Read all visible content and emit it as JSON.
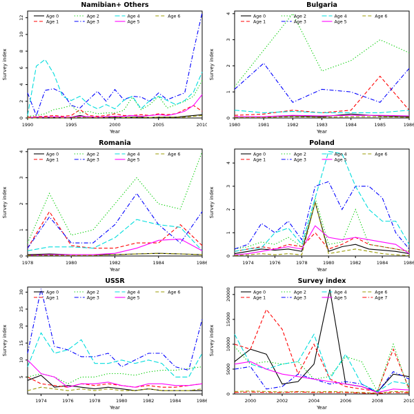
{
  "page": {
    "background": "#ffffff"
  },
  "chart_data": [
    {
      "type": "line",
      "title": "Namibian+ Others",
      "xlabel": "Year",
      "ylabel": "Survey index",
      "xlim": [
        1990,
        2010
      ],
      "ylim": [
        0,
        12.8
      ],
      "xticks": [
        1990,
        1995,
        2000,
        2005,
        2010
      ],
      "yticks": [
        0,
        2,
        4,
        6,
        8,
        10,
        12
      ],
      "grid": false,
      "legend_position": "top-inside",
      "x": [
        1990,
        1991,
        1992,
        1993,
        1994,
        1995,
        1996,
        1997,
        1998,
        1999,
        2000,
        2001,
        2002,
        2003,
        2004,
        2005,
        2006,
        2007,
        2008,
        2009,
        2010
      ],
      "series": [
        {
          "name": "Age 0",
          "color": "#000000",
          "dash": "solid",
          "values": [
            0.05,
            0.05,
            0.1,
            0.05,
            0.05,
            0.1,
            0.3,
            0.1,
            0.05,
            0.1,
            0.1,
            0.05,
            0.1,
            0.1,
            0.05,
            0.1,
            0.1,
            0.1,
            0.2,
            0.3,
            0.4
          ]
        },
        {
          "name": "Age 1",
          "color": "#FF0000",
          "dash": "dashed",
          "values": [
            0.1,
            0.15,
            0.2,
            0.3,
            0.2,
            0.3,
            1.0,
            0.3,
            0.2,
            0.3,
            0.5,
            0.3,
            0.3,
            0.4,
            0.3,
            0.5,
            0.4,
            0.5,
            1.0,
            1.5,
            0.8
          ]
        },
        {
          "name": "Age 2",
          "color": "#00CD00",
          "dash": "dotted",
          "values": [
            0.2,
            0.3,
            0.5,
            1.0,
            1.2,
            1.5,
            0.6,
            0.8,
            0.5,
            0.6,
            0.6,
            0.9,
            2.5,
            1.0,
            1.6,
            2.6,
            1.2,
            1.6,
            2.0,
            2.6,
            4.5
          ]
        },
        {
          "name": "Age 3",
          "color": "#0000FF",
          "dash": "dashdot",
          "values": [
            3.0,
            0.3,
            3.3,
            3.5,
            3.0,
            1.5,
            1.2,
            2.2,
            3.2,
            2.0,
            3.4,
            2.2,
            2.6,
            2.5,
            2.0,
            3.0,
            2.2,
            2.6,
            3.0,
            8.0,
            12.6
          ]
        },
        {
          "name": "Age 4",
          "color": "#00DDDD",
          "dash": "longdash",
          "values": [
            0.3,
            6.2,
            7.0,
            5.3,
            2.6,
            2.1,
            2.6,
            1.6,
            1.1,
            1.6,
            1.1,
            2.1,
            2.6,
            1.1,
            2.1,
            2.6,
            2.1,
            1.6,
            2.1,
            3.1,
            5.5
          ]
        },
        {
          "name": "Age 5",
          "color": "#FF00FF",
          "dash": "solid",
          "values": [
            0.05,
            0.1,
            0.1,
            0.15,
            0.1,
            0.1,
            0.2,
            0.15,
            0.1,
            0.15,
            0.2,
            0.2,
            0.3,
            0.2,
            0.3,
            0.4,
            0.3,
            0.5,
            0.8,
            1.5,
            2.8
          ]
        },
        {
          "name": "Age 6",
          "color": "#999900",
          "dash": "dashed",
          "values": [
            0.02,
            0.02,
            0.05,
            0.05,
            0.02,
            0.05,
            0.1,
            0.05,
            0.05,
            0.05,
            0.1,
            0.05,
            0.05,
            0.1,
            0.05,
            0.1,
            0.1,
            0.1,
            0.1,
            0.2,
            0.3
          ]
        }
      ]
    },
    {
      "type": "line",
      "title": "Bulgaria",
      "xlabel": "Year",
      "ylabel": "Survey index",
      "xlim": [
        1980,
        1986
      ],
      "ylim": [
        0,
        4.1
      ],
      "xticks": [
        1980,
        1981,
        1982,
        1983,
        1984,
        1985,
        1986
      ],
      "yticks": [
        0,
        1,
        2,
        3,
        4
      ],
      "grid": false,
      "legend_position": "top-inside",
      "x": [
        1980,
        1981,
        1982,
        1983,
        1984,
        1985,
        1986
      ],
      "series": [
        {
          "name": "Age 0",
          "color": "#000000",
          "dash": "solid",
          "values": [
            0.05,
            0.05,
            0.08,
            0.05,
            0.15,
            0.08,
            0.05
          ]
        },
        {
          "name": "Age 1",
          "color": "#FF0000",
          "dash": "dashed",
          "values": [
            0.1,
            0.15,
            0.3,
            0.2,
            0.3,
            1.6,
            0.3
          ]
        },
        {
          "name": "Age 2",
          "color": "#00CD00",
          "dash": "dotted",
          "values": [
            1.2,
            2.6,
            4.0,
            1.8,
            2.2,
            3.0,
            2.5
          ]
        },
        {
          "name": "Age 3",
          "color": "#0000FF",
          "dash": "dashdot",
          "values": [
            1.1,
            2.1,
            0.6,
            1.1,
            1.0,
            0.6,
            1.9
          ]
        },
        {
          "name": "Age 4",
          "color": "#00DDDD",
          "dash": "longdash",
          "values": [
            0.3,
            0.2,
            0.25,
            0.2,
            0.2,
            0.2,
            0.3
          ]
        },
        {
          "name": "Age 5",
          "color": "#FF00FF",
          "dash": "solid",
          "values": [
            0.05,
            0.05,
            0.1,
            0.08,
            0.1,
            0.1,
            0.08
          ]
        },
        {
          "name": "Age 6",
          "color": "#999900",
          "dash": "dashed",
          "values": [
            0.02,
            0.02,
            0.05,
            0.03,
            0.05,
            0.05,
            0.03
          ]
        }
      ]
    },
    {
      "type": "line",
      "title": "Romania",
      "xlabel": "Year",
      "ylabel": "Survey index",
      "xlim": [
        1978,
        1986
      ],
      "ylim": [
        0,
        4.1
      ],
      "xticks": [
        1978,
        1980,
        1982,
        1984,
        1986
      ],
      "yticks": [
        0,
        1,
        2,
        3,
        4
      ],
      "grid": false,
      "legend_position": "top-inside",
      "x": [
        1978,
        1979,
        1980,
        1981,
        1982,
        1983,
        1984,
        1985,
        1986
      ],
      "series": [
        {
          "name": "Age 0",
          "color": "#000000",
          "dash": "solid",
          "values": [
            0.05,
            0.08,
            0.05,
            0.05,
            0.05,
            0.08,
            0.1,
            0.08,
            0.05
          ]
        },
        {
          "name": "Age 1",
          "color": "#FF0000",
          "dash": "dashed",
          "values": [
            0.3,
            1.7,
            0.4,
            0.3,
            0.3,
            0.5,
            0.5,
            1.2,
            0.4
          ]
        },
        {
          "name": "Age 2",
          "color": "#00CD00",
          "dash": "dotted",
          "values": [
            0.5,
            2.4,
            0.8,
            1.0,
            2.0,
            3.0,
            2.0,
            1.8,
            4.0
          ]
        },
        {
          "name": "Age 3",
          "color": "#0000FF",
          "dash": "dashdot",
          "values": [
            0.3,
            1.5,
            0.5,
            0.5,
            1.2,
            2.4,
            1.2,
            0.5,
            1.7
          ]
        },
        {
          "name": "Age 4",
          "color": "#00DDDD",
          "dash": "longdash",
          "values": [
            0.2,
            0.35,
            0.35,
            0.3,
            0.7,
            1.4,
            1.2,
            1.1,
            0.2
          ]
        },
        {
          "name": "Age 5",
          "color": "#FF00FF",
          "dash": "solid",
          "values": [
            0.02,
            0.05,
            0.05,
            0.05,
            0.1,
            0.3,
            0.6,
            0.65,
            0.2
          ]
        },
        {
          "name": "Age 6",
          "color": "#999900",
          "dash": "dashed",
          "values": [
            0.02,
            0.03,
            0.02,
            0.02,
            0.05,
            0.08,
            0.1,
            0.08,
            0.05
          ]
        }
      ]
    },
    {
      "type": "line",
      "title": "Poland",
      "xlabel": "Year",
      "ylabel": "Survey index",
      "xlim": [
        1973,
        1986
      ],
      "ylim": [
        0,
        4.6
      ],
      "xticks": [
        1974,
        1976,
        1978,
        1980,
        1982,
        1984,
        1986
      ],
      "yticks": [
        0,
        1,
        2,
        3,
        4
      ],
      "grid": false,
      "legend_position": "top-inside",
      "x": [
        1973,
        1974,
        1975,
        1976,
        1977,
        1978,
        1979,
        1980,
        1981,
        1982,
        1983,
        1984,
        1985,
        1986
      ],
      "series": [
        {
          "name": "Age 0",
          "color": "#000000",
          "dash": "solid",
          "values": [
            0.1,
            0.2,
            0.3,
            0.25,
            0.3,
            0.2,
            2.3,
            0.2,
            0.4,
            0.5,
            0.3,
            0.25,
            0.2,
            0.1
          ]
        },
        {
          "name": "Age 1",
          "color": "#FF0000",
          "dash": "dashed",
          "values": [
            0.2,
            0.3,
            0.4,
            0.3,
            0.5,
            0.4,
            1.0,
            0.3,
            0.5,
            0.8,
            0.5,
            0.4,
            0.3,
            0.2
          ]
        },
        {
          "name": "Age 2",
          "color": "#00CD00",
          "dash": "dotted",
          "values": [
            0.3,
            0.4,
            0.6,
            0.5,
            0.8,
            0.4,
            2.5,
            0.5,
            0.6,
            2.0,
            0.5,
            0.4,
            0.3,
            0.2
          ]
        },
        {
          "name": "Age 3",
          "color": "#0000FF",
          "dash": "dashdot",
          "values": [
            0.3,
            0.5,
            1.4,
            1.0,
            1.5,
            0.7,
            3.0,
            3.2,
            2.0,
            3.0,
            3.0,
            2.5,
            1.0,
            0.3
          ]
        },
        {
          "name": "Age 4",
          "color": "#00DDDD",
          "dash": "longdash",
          "values": [
            0.2,
            0.3,
            0.35,
            1.0,
            1.2,
            0.5,
            2.5,
            4.5,
            4.4,
            3.0,
            2.0,
            1.5,
            1.5,
            0.5
          ]
        },
        {
          "name": "Age 5",
          "color": "#FF00FF",
          "dash": "solid",
          "values": [
            0.05,
            0.1,
            0.2,
            0.3,
            0.4,
            0.3,
            1.3,
            0.8,
            0.7,
            0.8,
            0.7,
            0.6,
            0.5,
            0.1
          ]
        },
        {
          "name": "Age 6",
          "color": "#999900",
          "dash": "dashed",
          "values": [
            0.02,
            0.05,
            0.1,
            0.05,
            0.1,
            0.05,
            2.3,
            0.1,
            0.2,
            0.3,
            0.2,
            0.1,
            0.05,
            0.02
          ]
        }
      ]
    },
    {
      "type": "line",
      "title": "USSR",
      "xlabel": "Year",
      "ylabel": "Survey index",
      "xlim": [
        1973,
        1986
      ],
      "ylim": [
        0,
        31.5
      ],
      "xticks": [
        1974,
        1976,
        1978,
        1980,
        1982,
        1984,
        1986
      ],
      "yticks": [
        5,
        10,
        15,
        20,
        25,
        30
      ],
      "grid": false,
      "legend_position": "top-inside",
      "x": [
        1973,
        1974,
        1975,
        1976,
        1977,
        1978,
        1979,
        1980,
        1981,
        1982,
        1983,
        1984,
        1985,
        1986
      ],
      "series": [
        {
          "name": "Age 0",
          "color": "#000000",
          "dash": "solid",
          "values": [
            4,
            5.5,
            2,
            2.5,
            2,
            1.5,
            2,
            1.5,
            1,
            1.5,
            1,
            1,
            1,
            1
          ]
        },
        {
          "name": "Age 1",
          "color": "#FF0000",
          "dash": "dashed",
          "values": [
            5,
            3,
            2.5,
            2,
            3,
            2.5,
            3,
            2.5,
            2,
            2.5,
            2,
            2,
            2.5,
            3
          ]
        },
        {
          "name": "Age 2",
          "color": "#00CD00",
          "dash": "dotted",
          "values": [
            5,
            6,
            5,
            3,
            5,
            5,
            6,
            6,
            5.5,
            6.5,
            7,
            7,
            7.5,
            8
          ]
        },
        {
          "name": "Age 3",
          "color": "#0000FF",
          "dash": "dashdot",
          "values": [
            12,
            31,
            14,
            13,
            11,
            11,
            12,
            8,
            10,
            12,
            12,
            8,
            7,
            22
          ]
        },
        {
          "name": "Age 4",
          "color": "#00DDDD",
          "dash": "longdash",
          "values": [
            8,
            18,
            12,
            13,
            16,
            9,
            9,
            10,
            9,
            10,
            9,
            5,
            5,
            12
          ]
        },
        {
          "name": "Age 5",
          "color": "#FF00FF",
          "dash": "solid",
          "values": [
            10,
            6,
            5,
            2,
            3,
            3,
            3.5,
            2.5,
            2,
            3,
            3,
            2.5,
            2.5,
            3
          ]
        },
        {
          "name": "Age 6",
          "color": "#999900",
          "dash": "dashed",
          "values": [
            1,
            2,
            1.5,
            1,
            1.5,
            1,
            1.5,
            1,
            1,
            1.5,
            1,
            1,
            1,
            1.5
          ]
        }
      ]
    },
    {
      "type": "line",
      "title": "Survey index",
      "xlabel": "Year",
      "ylabel": "Survey index",
      "xlim": [
        1999,
        2010
      ],
      "ylim": [
        0,
        21500
      ],
      "xticks": [
        2000,
        2002,
        2004,
        2006,
        2008,
        2010
      ],
      "yticks": [
        0,
        5000,
        10000,
        15000,
        20000
      ],
      "grid": false,
      "legend_position": "top-inside",
      "x": [
        1999,
        2000,
        2001,
        2002,
        2003,
        2004,
        2005,
        2006,
        2007,
        2008,
        2009,
        2010
      ],
      "series": [
        {
          "name": "Age 0",
          "color": "#000000",
          "dash": "solid",
          "values": [
            6500,
            9000,
            8000,
            2000,
            2500,
            6000,
            21000,
            2000,
            1500,
            400,
            4000,
            3500
          ]
        },
        {
          "name": "Age 1",
          "color": "#FF0000",
          "dash": "dashed",
          "values": [
            10000,
            9000,
            17000,
            13000,
            4000,
            10000,
            3000,
            1500,
            1000,
            500,
            9000,
            1000
          ]
        },
        {
          "name": "Age 2",
          "color": "#00CD00",
          "dash": "dotted",
          "values": [
            9500,
            6000,
            6500,
            6000,
            6500,
            3000,
            3500,
            7500,
            6500,
            500,
            10000,
            600
          ]
        },
        {
          "name": "Age 3",
          "color": "#0000FF",
          "dash": "dashdot",
          "values": [
            5000,
            5500,
            1000,
            1500,
            4000,
            3000,
            2000,
            2500,
            2000,
            300,
            4500,
            3000
          ]
        },
        {
          "name": "Age 4",
          "color": "#00DDDD",
          "dash": "longdash",
          "values": [
            12000,
            6000,
            5000,
            6000,
            6500,
            12000,
            3000,
            8000,
            2000,
            500,
            2500,
            2000
          ]
        },
        {
          "name": "Age 5",
          "color": "#FF00FF",
          "dash": "solid",
          "values": [
            6000,
            6500,
            5000,
            4000,
            3500,
            3000,
            2500,
            2000,
            1500,
            300,
            1000,
            800
          ]
        },
        {
          "name": "Age 6",
          "color": "#999900",
          "dash": "dashed",
          "values": [
            500,
            600,
            500,
            400,
            500,
            400,
            500,
            400,
            300,
            200,
            500,
            400
          ]
        },
        {
          "name": "Age 7",
          "color": "#FF0000",
          "dash": "dashdot",
          "values": [
            300,
            400,
            300,
            300,
            400,
            300,
            300,
            300,
            200,
            100,
            300,
            250
          ]
        }
      ]
    }
  ]
}
